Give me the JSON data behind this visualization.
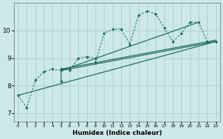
{
  "xlabel": "Humidex (Indice chaleur)",
  "xlim": [
    -0.5,
    23.5
  ],
  "ylim": [
    6.7,
    11.0
  ],
  "xticks": [
    0,
    1,
    2,
    3,
    4,
    5,
    6,
    7,
    8,
    9,
    10,
    11,
    12,
    13,
    14,
    15,
    16,
    17,
    18,
    19,
    20,
    21,
    22,
    23
  ],
  "yticks": [
    7,
    8,
    9,
    10
  ],
  "bg_color": "#cce8e8",
  "grid_color": "#aacccc",
  "line_color": "#1a6b5c",
  "main_line": [
    [
      0,
      7.65
    ],
    [
      1,
      7.2
    ],
    [
      2,
      8.2
    ],
    [
      3,
      8.5
    ],
    [
      4,
      8.6
    ],
    [
      5,
      8.55
    ],
    [
      5,
      8.15
    ],
    [
      5,
      8.6
    ],
    [
      6,
      8.6
    ],
    [
      6,
      8.55
    ],
    [
      7,
      9.0
    ],
    [
      8,
      9.05
    ],
    [
      9,
      9.0
    ],
    [
      9,
      8.85
    ],
    [
      10,
      9.9
    ],
    [
      11,
      10.05
    ],
    [
      12,
      10.05
    ],
    [
      13,
      9.5
    ],
    [
      14,
      10.55
    ],
    [
      15,
      10.7
    ],
    [
      16,
      10.6
    ],
    [
      17,
      10.1
    ],
    [
      18,
      9.6
    ],
    [
      19,
      9.9
    ],
    [
      20,
      10.3
    ],
    [
      21,
      10.3
    ],
    [
      22,
      9.6
    ],
    [
      23,
      9.6
    ]
  ],
  "reg_lines": [
    [
      [
        0,
        7.65
      ],
      [
        23,
        9.6
      ]
    ],
    [
      [
        5,
        8.55
      ],
      [
        23,
        9.6
      ]
    ],
    [
      [
        5,
        8.6
      ],
      [
        23,
        9.65
      ]
    ],
    [
      [
        5,
        8.55
      ],
      [
        21,
        10.3
      ]
    ]
  ]
}
